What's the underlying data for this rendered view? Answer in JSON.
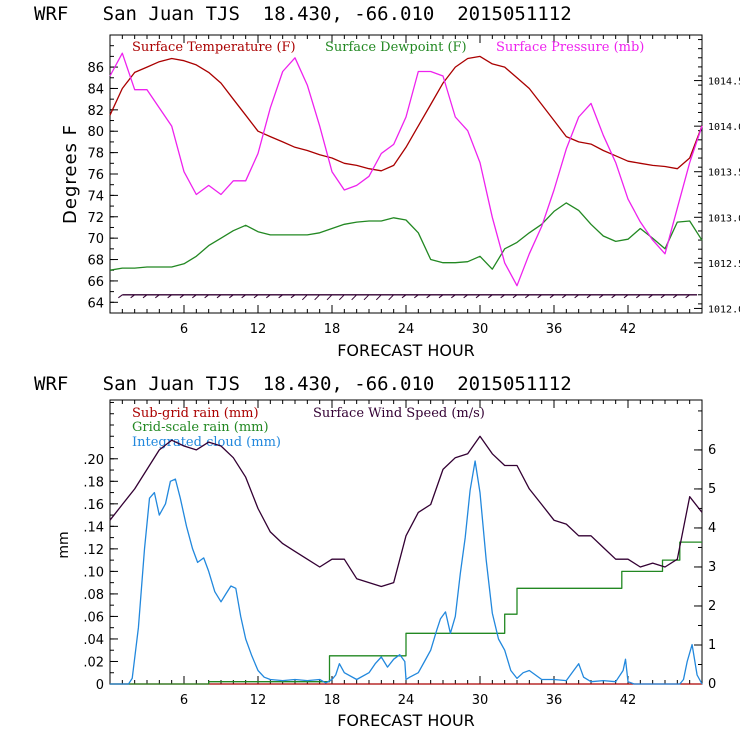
{
  "chart_data": [
    {
      "type": "line",
      "title": "WRF   San Juan TJS  18.430, -66.010  2015051112",
      "xlabel": "FORECAST HOUR",
      "ylabel": "Degrees F",
      "xlim": [
        0,
        48
      ],
      "ylim": [
        63,
        89
      ],
      "y2lim": [
        1011.95,
        1015.0
      ],
      "x_ticks": [
        "6",
        "12",
        "18",
        "24",
        "30",
        "36",
        "42"
      ],
      "y_ticks": [
        "64",
        "66",
        "68",
        "70",
        "72",
        "74",
        "76",
        "78",
        "80",
        "82",
        "84",
        "86"
      ],
      "y2_ticks": [
        "1012.0",
        "1012.5",
        "1013.0",
        "1013.5",
        "1014.0",
        "1014.5"
      ],
      "colors": {
        "temperature": "#aa0000",
        "dewpoint": "#228822",
        "pressure": "#ee22ee",
        "wind": "#330033"
      },
      "series": [
        {
          "name": "Surface Temperature (F)",
          "axis": "left",
          "x": [
            0,
            1,
            2,
            3,
            4,
            5,
            6,
            7,
            8,
            9,
            10,
            11,
            12,
            13,
            14,
            15,
            16,
            17,
            18,
            19,
            20,
            21,
            22,
            23,
            24,
            25,
            26,
            27,
            28,
            29,
            30,
            31,
            32,
            33,
            34,
            35,
            36,
            37,
            38,
            39,
            40,
            41,
            42,
            43,
            44,
            45,
            46,
            47,
            48
          ],
          "values": [
            81.5,
            84.0,
            85.5,
            86.0,
            86.5,
            86.8,
            86.6,
            86.2,
            85.5,
            84.5,
            83.0,
            81.5,
            80.0,
            79.5,
            79.0,
            78.5,
            78.2,
            77.8,
            77.5,
            77.0,
            76.8,
            76.5,
            76.3,
            76.8,
            78.5,
            80.5,
            82.5,
            84.5,
            86.0,
            86.8,
            87.0,
            86.3,
            86.0,
            85.0,
            84.0,
            82.5,
            81.0,
            79.5,
            79.0,
            78.8,
            78.2,
            77.7,
            77.2,
            77.0,
            76.8,
            76.7,
            76.5,
            77.5,
            80.5
          ]
        },
        {
          "name": "Surface Dewpoint (F)",
          "axis": "left",
          "x": [
            0,
            1,
            2,
            3,
            4,
            5,
            6,
            7,
            8,
            9,
            10,
            11,
            12,
            13,
            14,
            15,
            16,
            17,
            18,
            19,
            20,
            21,
            22,
            23,
            24,
            25,
            26,
            27,
            28,
            29,
            30,
            31,
            32,
            33,
            34,
            35,
            36,
            37,
            38,
            39,
            40,
            41,
            42,
            43,
            44,
            45,
            46,
            47,
            48
          ],
          "values": [
            67.0,
            67.2,
            67.2,
            67.3,
            67.3,
            67.3,
            67.6,
            68.3,
            69.3,
            70.0,
            70.7,
            71.2,
            70.6,
            70.3,
            70.3,
            70.3,
            70.3,
            70.5,
            70.9,
            71.3,
            71.5,
            71.6,
            71.6,
            71.9,
            71.7,
            70.5,
            68.0,
            67.7,
            67.7,
            67.8,
            68.3,
            67.1,
            69.0,
            69.6,
            70.5,
            71.3,
            72.5,
            73.3,
            72.6,
            71.3,
            70.2,
            69.7,
            69.9,
            70.9,
            70.0,
            69.0,
            71.5,
            71.6,
            69.8
          ]
        },
        {
          "name": "Surface Pressure (mb)",
          "axis": "right",
          "x": [
            0,
            1,
            2,
            3,
            4,
            5,
            6,
            7,
            8,
            9,
            10,
            11,
            12,
            13,
            14,
            15,
            16,
            17,
            18,
            19,
            20,
            21,
            22,
            23,
            24,
            25,
            26,
            27,
            28,
            29,
            30,
            31,
            32,
            33,
            34,
            35,
            36,
            37,
            38,
            39,
            40,
            41,
            42,
            43,
            44,
            45,
            46,
            47,
            48
          ],
          "values": [
            1014.55,
            1014.8,
            1014.4,
            1014.4,
            1014.2,
            1014.0,
            1013.5,
            1013.25,
            1013.35,
            1013.25,
            1013.4,
            1013.4,
            1013.7,
            1014.2,
            1014.6,
            1014.75,
            1014.45,
            1014.0,
            1013.5,
            1013.3,
            1013.35,
            1013.45,
            1013.7,
            1013.8,
            1014.1,
            1014.6,
            1014.6,
            1014.55,
            1014.1,
            1013.95,
            1013.6,
            1013.0,
            1012.5,
            1012.25,
            1012.6,
            1012.9,
            1013.3,
            1013.75,
            1014.1,
            1014.25,
            1013.9,
            1013.6,
            1013.2,
            1012.95,
            1012.75,
            1012.6,
            1013.1,
            1013.6,
            1014.0
          ]
        }
      ],
      "annotation": "Surface wind barbs (direction and speed) plotted along the bottom of the panel"
    },
    {
      "type": "line",
      "title": "WRF   San Juan TJS  18.430, -66.010  2015051112",
      "xlabel": "FORECAST HOUR",
      "ylabel": "mm",
      "xlim": [
        0,
        48
      ],
      "ylim": [
        0,
        0.2522
      ],
      "y2lim": [
        0,
        7.28
      ],
      "x_ticks": [
        "6",
        "12",
        "18",
        "24",
        "30",
        "36",
        "42"
      ],
      "y_ticks": [
        "0",
        ".02",
        ".04",
        ".06",
        ".08",
        ".10",
        ".12",
        ".14",
        ".16",
        ".18",
        ".20"
      ],
      "y2_ticks": [
        "0",
        "1",
        "2",
        "3",
        "4",
        "5",
        "6"
      ],
      "colors": {
        "subgrid": "#aa0000",
        "gridscale": "#228822",
        "cloud": "#2288dd",
        "wind": "#330033"
      },
      "series": [
        {
          "name": "Sub-grid rain (mm)",
          "axis": "left",
          "x": [
            0,
            48
          ],
          "values": [
            0,
            0
          ]
        },
        {
          "name": "Grid-scale rain (mm)",
          "axis": "left",
          "x": [
            0,
            8,
            8,
            17.8,
            17.8,
            24,
            24,
            32,
            32,
            33,
            33,
            41.5,
            41.5,
            44.8,
            44.8,
            46.2,
            46.2,
            48
          ],
          "values": [
            0,
            0,
            0.002,
            0.002,
            0.025,
            0.025,
            0.045,
            0.045,
            0.062,
            0.062,
            0.085,
            0.085,
            0.1,
            0.1,
            0.11,
            0.11,
            0.126,
            0.126
          ]
        },
        {
          "name": "Integrated cloud (mm)",
          "axis": "left",
          "x": [
            0,
            1.5,
            1.8,
            2.3,
            2.8,
            3.2,
            3.6,
            4.0,
            4.5,
            4.9,
            5.3,
            5.7,
            6.2,
            6.7,
            7.1,
            7.6,
            8.0,
            8.5,
            9.0,
            9.4,
            9.8,
            10.2,
            10.6,
            11.0,
            11.5,
            12.0,
            12.5,
            13.0,
            14.0,
            15.0,
            16.0,
            17.0,
            17.5,
            18.0,
            18.3,
            18.6,
            19.0,
            20.0,
            21.0,
            21.5,
            22.0,
            22.5,
            23.0,
            23.5,
            23.9,
            24.0,
            24.3,
            25.0,
            25.5,
            26.0,
            26.5,
            26.8,
            27.2,
            27.6,
            28.0,
            28.4,
            28.8,
            29.2,
            29.6,
            30.0,
            30.5,
            31.0,
            31.5,
            32.0,
            32.5,
            33.0,
            33.5,
            34.0,
            35.0,
            36.0,
            37.0,
            37.6,
            38.0,
            38.4,
            39.0,
            40.0,
            41.0,
            41.6,
            41.8,
            42.0,
            42.5,
            43.5,
            44.5,
            45.5,
            46.2,
            46.5,
            46.8,
            47.2,
            47.6,
            48.0
          ],
          "values": [
            0,
            0,
            0.005,
            0.05,
            0.12,
            0.165,
            0.17,
            0.15,
            0.16,
            0.18,
            0.182,
            0.165,
            0.14,
            0.12,
            0.108,
            0.112,
            0.1,
            0.082,
            0.073,
            0.08,
            0.087,
            0.085,
            0.06,
            0.04,
            0.025,
            0.012,
            0.006,
            0.004,
            0.003,
            0.004,
            0.003,
            0.004,
            0.001,
            0.004,
            0.008,
            0.018,
            0.01,
            0.004,
            0.01,
            0.018,
            0.024,
            0.015,
            0.022,
            0.026,
            0.02,
            0.004,
            0.006,
            0.01,
            0.02,
            0.03,
            0.048,
            0.058,
            0.064,
            0.045,
            0.06,
            0.098,
            0.13,
            0.172,
            0.198,
            0.17,
            0.11,
            0.063,
            0.04,
            0.03,
            0.012,
            0.005,
            0.01,
            0.012,
            0.004,
            0.004,
            0.003,
            0.012,
            0.018,
            0.006,
            0.002,
            0.003,
            0.002,
            0.012,
            0.022,
            0.002,
            0,
            0,
            0,
            0,
            0,
            0.004,
            0.02,
            0.035,
            0.008,
            0
          ]
        },
        {
          "name": "Surface Wind Speed (m/s)",
          "axis": "right",
          "x": [
            0,
            1,
            2,
            3,
            4,
            5,
            6,
            7,
            8,
            9,
            10,
            11,
            12,
            13,
            14,
            15,
            16,
            17,
            18,
            19,
            20,
            21,
            22,
            23,
            24,
            25,
            26,
            27,
            28,
            29,
            30,
            31,
            32,
            33,
            34,
            35,
            36,
            37,
            38,
            39,
            40,
            41,
            42,
            43,
            44,
            45,
            46,
            47,
            48
          ],
          "values": [
            4.2,
            4.6,
            5.0,
            5.5,
            6.0,
            6.25,
            6.1,
            6.0,
            6.2,
            6.1,
            5.8,
            5.3,
            4.5,
            3.9,
            3.6,
            3.4,
            3.2,
            3.0,
            3.2,
            3.2,
            2.7,
            2.6,
            2.5,
            2.6,
            3.8,
            4.4,
            4.6,
            5.5,
            5.8,
            5.9,
            6.35,
            5.9,
            5.6,
            5.6,
            5.0,
            4.6,
            4.2,
            4.1,
            3.8,
            3.8,
            3.5,
            3.2,
            3.2,
            3.0,
            3.1,
            3.0,
            3.2,
            4.8,
            4.4
          ]
        }
      ]
    }
  ]
}
